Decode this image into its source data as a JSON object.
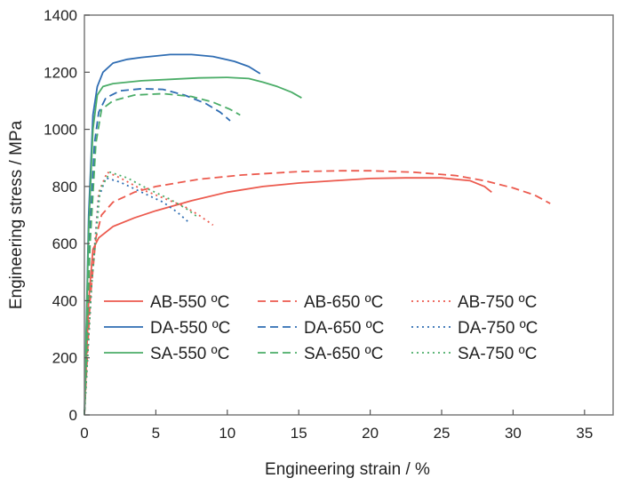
{
  "chart_data": {
    "type": "line",
    "title": "",
    "xlabel": "Engineering strain / %",
    "ylabel": "Engineering stress / MPa",
    "xlim": [
      0,
      37
    ],
    "ylim": [
      0,
      1400
    ],
    "xticks": [
      "0",
      "5",
      "10",
      "15",
      "20",
      "25",
      "30",
      "35"
    ],
    "yticks": [
      "0",
      "200",
      "400",
      "600",
      "800",
      "1000",
      "1200",
      "1400"
    ],
    "grid": false,
    "legend_placement": "bottom-center",
    "series": [
      {
        "name": "AB-550 ºC",
        "color": "#ec5a4e",
        "dash": "solid",
        "x": [
          0,
          0.3,
          0.6,
          1,
          2,
          3.5,
          5,
          7.5,
          10,
          12.5,
          15,
          17.5,
          20,
          22.5,
          25,
          27,
          28,
          28.5
        ],
        "y": [
          0,
          400,
          580,
          620,
          660,
          690,
          715,
          750,
          780,
          800,
          812,
          820,
          828,
          830,
          830,
          820,
          800,
          780
        ]
      },
      {
        "name": "AB-650 ºC",
        "color": "#ec5a4e",
        "dash": "dashed",
        "x": [
          0,
          0.4,
          0.8,
          1.2,
          2,
          3.5,
          5,
          8,
          11,
          15,
          18,
          20,
          23,
          26,
          28,
          30,
          31.5,
          32.6
        ],
        "y": [
          0,
          400,
          620,
          700,
          745,
          780,
          800,
          825,
          840,
          852,
          855,
          855,
          850,
          838,
          820,
          795,
          770,
          740
        ]
      },
      {
        "name": "AB-750 ºC",
        "color": "#ec5a4e",
        "dash": "dotted",
        "x": [
          0,
          0.5,
          1,
          1.6,
          2.5,
          4,
          5.5,
          7,
          8,
          9
        ],
        "y": [
          0,
          450,
          780,
          850,
          830,
          790,
          760,
          730,
          700,
          665
        ]
      },
      {
        "name": "DA-550 ºC",
        "color": "#2f6db3",
        "dash": "solid",
        "x": [
          0,
          0.3,
          0.6,
          0.9,
          1.3,
          2,
          3,
          4,
          6,
          7.5,
          9,
          10.5,
          11.5,
          12.3
        ],
        "y": [
          0,
          700,
          1050,
          1150,
          1200,
          1232,
          1245,
          1252,
          1262,
          1262,
          1255,
          1238,
          1220,
          1195
        ]
      },
      {
        "name": "DA-650 ºC",
        "color": "#2f6db3",
        "dash": "dashed",
        "x": [
          0,
          0.4,
          0.7,
          1,
          1.5,
          2.5,
          4,
          5.5,
          7,
          8.5,
          9.5,
          10.2
        ],
        "y": [
          0,
          650,
          950,
          1060,
          1110,
          1135,
          1142,
          1140,
          1120,
          1090,
          1060,
          1030
        ]
      },
      {
        "name": "DA-750 ºC",
        "color": "#2f6db3",
        "dash": "dotted",
        "x": [
          0,
          0.5,
          1,
          1.5,
          2.5,
          4,
          5.5,
          6.5,
          7.4
        ],
        "y": [
          0,
          450,
          760,
          830,
          815,
          780,
          745,
          710,
          670
        ]
      },
      {
        "name": "SA-550 ºC",
        "color": "#4bad68",
        "dash": "solid",
        "x": [
          0,
          0.3,
          0.6,
          0.9,
          1.3,
          2,
          4,
          6,
          8,
          10,
          11.5,
          12.5,
          13.5,
          14.5,
          15.2
        ],
        "y": [
          0,
          650,
          1000,
          1120,
          1150,
          1160,
          1170,
          1175,
          1180,
          1182,
          1178,
          1165,
          1150,
          1130,
          1110
        ]
      },
      {
        "name": "SA-650 ºC",
        "color": "#4bad68",
        "dash": "dashed",
        "x": [
          0,
          0.4,
          0.8,
          1.2,
          2,
          3.5,
          5.5,
          7.5,
          9,
          10.2,
          10.9
        ],
        "y": [
          0,
          600,
          950,
          1070,
          1100,
          1120,
          1125,
          1115,
          1095,
          1070,
          1050
        ]
      },
      {
        "name": "SA-750 ºC",
        "color": "#4bad68",
        "dash": "dotted",
        "x": [
          0,
          0.5,
          1.1,
          1.8,
          3,
          4.5,
          6,
          7.2,
          8
        ],
        "y": [
          0,
          450,
          790,
          850,
          830,
          790,
          755,
          720,
          690
        ]
      }
    ]
  }
}
